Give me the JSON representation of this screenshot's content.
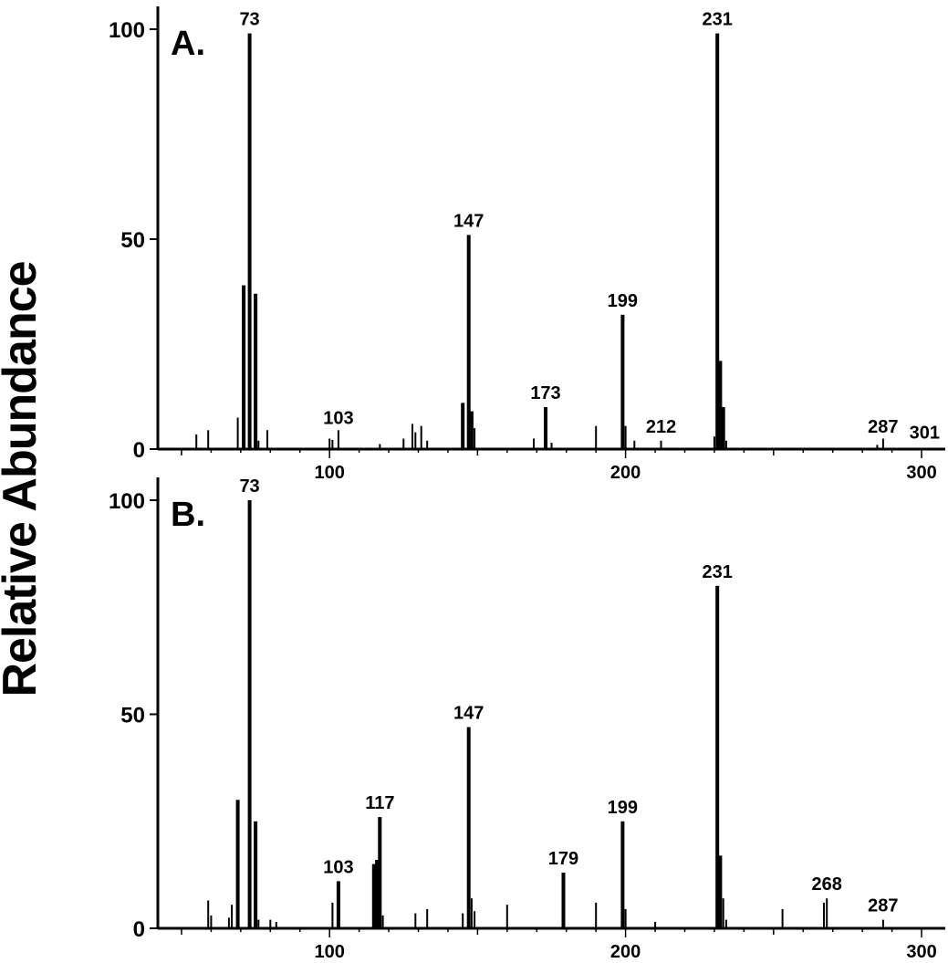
{
  "ylabel": "Relative Abundance",
  "chart_data": [
    {
      "type": "bar",
      "panel_label": "A.",
      "ylabel": "Relative Abundance",
      "xlim": [
        42,
        308
      ],
      "ylim": [
        0,
        100
      ],
      "yticks": [
        0,
        50,
        100
      ],
      "xticks": [
        100,
        200,
        300
      ],
      "grid": false,
      "labeled_peaks": [
        {
          "mz": 73,
          "label": "73",
          "value": 99
        },
        {
          "mz": 103,
          "label": "103",
          "value": 4
        },
        {
          "mz": 147,
          "label": "147",
          "value": 51
        },
        {
          "mz": 173,
          "label": "173",
          "value": 10
        },
        {
          "mz": 199,
          "label": "199",
          "value": 32
        },
        {
          "mz": 212,
          "label": "212",
          "value": 2
        },
        {
          "mz": 231,
          "label": "231",
          "value": 99
        },
        {
          "mz": 287,
          "label": "287",
          "value": 2
        },
        {
          "mz": 301,
          "label": "301",
          "value": 0.5
        }
      ],
      "peaks": [
        [
          55,
          3.5
        ],
        [
          59,
          4.5
        ],
        [
          69,
          7.5
        ],
        [
          71,
          39
        ],
        [
          73,
          99
        ],
        [
          75,
          37
        ],
        [
          76,
          2
        ],
        [
          79,
          4.5
        ],
        [
          100,
          2.5
        ],
        [
          101,
          2.2
        ],
        [
          103,
          4.5
        ],
        [
          117,
          1.2
        ],
        [
          125,
          2.5
        ],
        [
          128,
          6
        ],
        [
          129,
          4
        ],
        [
          131,
          5.5
        ],
        [
          133,
          2
        ],
        [
          145,
          11
        ],
        [
          147,
          51
        ],
        [
          148,
          9
        ],
        [
          149,
          5
        ],
        [
          169,
          2.5
        ],
        [
          173,
          10
        ],
        [
          175,
          1.5
        ],
        [
          190,
          5.5
        ],
        [
          199,
          32
        ],
        [
          200,
          5.5
        ],
        [
          203,
          2
        ],
        [
          212,
          2
        ],
        [
          230,
          3
        ],
        [
          231,
          99
        ],
        [
          232,
          21
        ],
        [
          233,
          10
        ],
        [
          234,
          2
        ],
        [
          285,
          1
        ],
        [
          287,
          2.5
        ]
      ]
    },
    {
      "type": "bar",
      "panel_label": "B.",
      "ylabel": "Relative Abundance",
      "xlim": [
        42,
        308
      ],
      "ylim": [
        0,
        100
      ],
      "yticks": [
        0,
        50,
        100
      ],
      "xticks": [
        100,
        200,
        300
      ],
      "grid": false,
      "labeled_peaks": [
        {
          "mz": 73,
          "label": "73",
          "value": 100
        },
        {
          "mz": 103,
          "label": "103",
          "value": 11
        },
        {
          "mz": 117,
          "label": "117",
          "value": 26
        },
        {
          "mz": 147,
          "label": "147",
          "value": 47
        },
        {
          "mz": 179,
          "label": "179",
          "value": 13
        },
        {
          "mz": 199,
          "label": "199",
          "value": 25
        },
        {
          "mz": 231,
          "label": "231",
          "value": 80
        },
        {
          "mz": 268,
          "label": "268",
          "value": 7
        },
        {
          "mz": 287,
          "label": "287",
          "value": 2
        }
      ],
      "peaks": [
        [
          59,
          6.5
        ],
        [
          60,
          3
        ],
        [
          66,
          2.5
        ],
        [
          67,
          5.5
        ],
        [
          69,
          30
        ],
        [
          73,
          100
        ],
        [
          75,
          25
        ],
        [
          76,
          2
        ],
        [
          80,
          2
        ],
        [
          82,
          1.5
        ],
        [
          101,
          6
        ],
        [
          103,
          11
        ],
        [
          115,
          15
        ],
        [
          116,
          16
        ],
        [
          117,
          26
        ],
        [
          118,
          3
        ],
        [
          129,
          3.5
        ],
        [
          133,
          4.5
        ],
        [
          145,
          3.5
        ],
        [
          147,
          47
        ],
        [
          148,
          7
        ],
        [
          149,
          4
        ],
        [
          160,
          5.5
        ],
        [
          179,
          13
        ],
        [
          190,
          6
        ],
        [
          199,
          25
        ],
        [
          200,
          4.5
        ],
        [
          210,
          1.5
        ],
        [
          231,
          80
        ],
        [
          232,
          17
        ],
        [
          233,
          7
        ],
        [
          234,
          2
        ],
        [
          253,
          4.5
        ],
        [
          267,
          6
        ],
        [
          268,
          7
        ],
        [
          287,
          2
        ]
      ]
    }
  ]
}
